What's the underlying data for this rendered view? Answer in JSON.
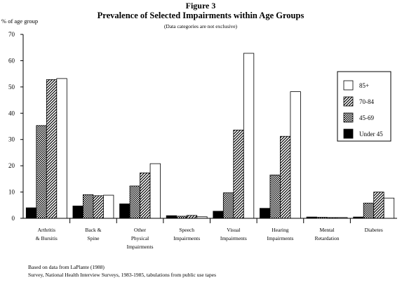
{
  "figure_label": "Figure 3",
  "chart_data": {
    "type": "bar",
    "title": "Prevalence of Selected Impairments within Age Groups",
    "subtitle": "(Data categories are not exclusive)",
    "ylabel": "% of age group",
    "xlabel": "",
    "ylim": [
      0,
      70
    ],
    "yticks": [
      0,
      10,
      20,
      30,
      40,
      50,
      60,
      70
    ],
    "grid": false,
    "legend_position": "right",
    "categories": [
      [
        "Arthritis",
        "& Bursitis"
      ],
      [
        "Back &",
        "Spine"
      ],
      [
        "Other",
        "Physical",
        "Impairments"
      ],
      [
        "Speech",
        "Impairments"
      ],
      [
        "Visual",
        "Impairments"
      ],
      [
        "Hearing",
        "Impairments"
      ],
      [
        "Mental",
        "Retardation"
      ],
      [
        "Diabetes"
      ]
    ],
    "series": [
      {
        "name": "Under 45",
        "pattern": "solid",
        "values": [
          4,
          4.7,
          5.5,
          1,
          2.7,
          3.8,
          0.5,
          0.5
        ]
      },
      {
        "name": "45-69",
        "pattern": "checker",
        "values": [
          35.3,
          9,
          12.3,
          0.8,
          9.7,
          16.5,
          0.4,
          5.8
        ]
      },
      {
        "name": "70-84",
        "pattern": "diagonal",
        "values": [
          52.8,
          8.6,
          17.3,
          1.1,
          33.6,
          31.2,
          0.3,
          10
        ]
      },
      {
        "name": "85+",
        "pattern": "white",
        "values": [
          53.2,
          8.8,
          20.8,
          0.6,
          62.8,
          48.2,
          0.3,
          7.7
        ]
      }
    ],
    "legend_order": [
      "85+",
      "70-84",
      "45-69",
      "Under 45"
    ]
  },
  "footnotes": [
    "Based on data from LaPlante (1988)",
    "Survey, National Health Interview Surveys, 1983-1985, tabulations from public use tapes"
  ],
  "colors": {
    "ink": "#000000",
    "background": "#ffffff"
  }
}
